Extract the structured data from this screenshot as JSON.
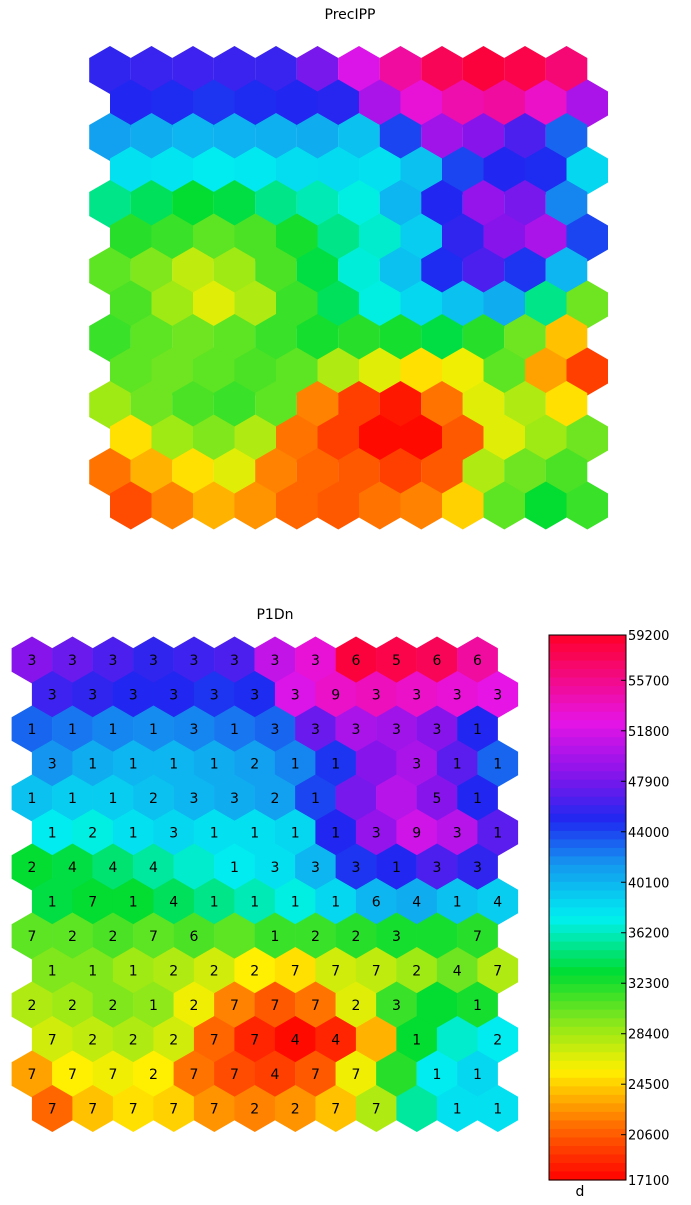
{
  "chart_data": [
    {
      "type": "heatmap",
      "layout": "hexagonal",
      "title": "PrecIPP",
      "rows": 14,
      "cols": 12,
      "values": [
        [
          45500,
          45800,
          46000,
          45900,
          45800,
          48000,
          52000,
          55000,
          57500,
          58500,
          58000,
          56500
        ],
        [
          45000,
          44800,
          44500,
          44800,
          45000,
          45200,
          50000,
          53000,
          54500,
          55000,
          53500,
          50000
        ],
        [
          41000,
          40500,
          40000,
          40200,
          40300,
          40500,
          39500,
          44000,
          49500,
          48500,
          46500,
          43000
        ],
        [
          38000,
          37800,
          37500,
          37700,
          38200,
          38300,
          38000,
          39500,
          44000,
          45000,
          44800,
          38500
        ],
        [
          35000,
          34000,
          33000,
          33500,
          35000,
          36000,
          37000,
          40000,
          45000,
          49000,
          48000,
          42000
        ],
        [
          32000,
          31500,
          30500,
          31000,
          32500,
          35000,
          36500,
          39000,
          45500,
          48500,
          50000,
          44000
        ],
        [
          30500,
          29500,
          27500,
          28500,
          31000,
          33500,
          36800,
          39500,
          44800,
          46500,
          44500,
          40000
        ],
        [
          31000,
          28500,
          26500,
          28000,
          31500,
          34000,
          37000,
          38500,
          39500,
          40500,
          35000,
          30000
        ],
        [
          31500,
          30500,
          30000,
          30500,
          31500,
          32500,
          32000,
          32500,
          33500,
          32000,
          30000,
          24000
        ],
        [
          30500,
          30000,
          30500,
          31000,
          30500,
          28000,
          26500,
          25000,
          26000,
          30500,
          23000,
          19500
        ],
        [
          28500,
          30000,
          31000,
          31500,
          30500,
          22000,
          19500,
          18000,
          21500,
          26500,
          28000,
          25000
        ],
        [
          25000,
          28500,
          29500,
          28000,
          21500,
          19500,
          17500,
          17500,
          20500,
          26500,
          28500,
          30000
        ],
        [
          21500,
          23500,
          25000,
          26500,
          22000,
          21000,
          20500,
          19500,
          20500,
          28000,
          30000,
          31000
        ],
        [
          20000,
          22000,
          23500,
          22500,
          21000,
          20500,
          21500,
          22000,
          24500,
          30500,
          33000,
          31500
        ]
      ]
    },
    {
      "type": "heatmap",
      "layout": "hexagonal",
      "title": "P1Dn",
      "rows": 14,
      "cols": 12,
      "values": [
        [
          48500,
          47500,
          46500,
          45500,
          46000,
          46500,
          51000,
          53000,
          58500,
          58000,
          57500,
          55000
        ],
        [
          46000,
          45500,
          45000,
          45000,
          44500,
          44800,
          52000,
          53500,
          54000,
          53500,
          53000,
          52500
        ],
        [
          43000,
          42500,
          42000,
          41800,
          42000,
          42500,
          43000,
          47500,
          50000,
          49500,
          48500,
          45000
        ],
        [
          41500,
          40500,
          40000,
          40000,
          40500,
          41000,
          42000,
          44500,
          48500,
          50000,
          47000,
          43000
        ],
        [
          39500,
          39000,
          39000,
          39500,
          40000,
          40500,
          41000,
          44000,
          48000,
          50500,
          48500,
          45000
        ],
        [
          37500,
          37000,
          38000,
          38500,
          38000,
          38000,
          38500,
          45000,
          49000,
          51500,
          50500,
          47000
        ],
        [
          33000,
          33500,
          34500,
          35500,
          36500,
          37500,
          38000,
          40000,
          44500,
          45000,
          46500,
          45500
        ],
        [
          33500,
          33000,
          33000,
          34000,
          35000,
          36000,
          37000,
          38500,
          40000,
          40500,
          39500,
          39000
        ],
        [
          30500,
          30500,
          31000,
          30500,
          31000,
          30500,
          31500,
          31500,
          32000,
          32500,
          32500,
          32000
        ],
        [
          29500,
          29500,
          28500,
          28000,
          27000,
          25500,
          25000,
          27000,
          27500,
          28500,
          30000,
          28000
        ],
        [
          28000,
          28500,
          29500,
          29000,
          26000,
          22000,
          20500,
          21500,
          26500,
          31500,
          33000,
          32500
        ],
        [
          27000,
          27500,
          28000,
          27000,
          21000,
          18500,
          17500,
          18500,
          23500,
          33000,
          36500,
          37500
        ],
        [
          23000,
          25500,
          26000,
          25500,
          21500,
          20000,
          19500,
          20500,
          26000,
          32000,
          37500,
          38500
        ],
        [
          21000,
          24000,
          25000,
          24500,
          22500,
          22000,
          22500,
          24000,
          28000,
          35500,
          38000,
          38000
        ]
      ],
      "labels": [
        [
          "3",
          "3",
          "3",
          "3",
          "3",
          "3",
          "3",
          "3",
          "6",
          "5",
          "6",
          "6"
        ],
        [
          "3",
          "3",
          "3",
          "3",
          "3",
          "3",
          "3",
          "9",
          "3",
          "3",
          "3",
          "3"
        ],
        [
          "1",
          "1",
          "1",
          "1",
          "3",
          "1",
          "3",
          "3",
          "3",
          "3",
          "3",
          "1"
        ],
        [
          "3",
          "1",
          "1",
          "1",
          "1",
          "2",
          "1",
          "1",
          "",
          "3",
          "1",
          "1"
        ],
        [
          "1",
          "1",
          "1",
          "2",
          "3",
          "3",
          "2",
          "1",
          "",
          "",
          "5",
          "1"
        ],
        [
          "1",
          "2",
          "1",
          "3",
          "1",
          "1",
          "1",
          "1",
          "3",
          "9",
          "3",
          "1"
        ],
        [
          "2",
          "4",
          "4",
          "4",
          "",
          "1",
          "3",
          "3",
          "3",
          "1",
          "3",
          "3"
        ],
        [
          "1",
          "7",
          "1",
          "4",
          "1",
          "1",
          "1",
          "1",
          "6",
          "4",
          "1",
          "4"
        ],
        [
          "7",
          "2",
          "2",
          "7",
          "6",
          "",
          "1",
          "2",
          "2",
          "3",
          "",
          "7"
        ],
        [
          "1",
          "1",
          "1",
          "2",
          "2",
          "2",
          "7",
          "7",
          "7",
          "2",
          "4",
          "7"
        ],
        [
          "2",
          "2",
          "2",
          "1",
          "2",
          "7",
          "7",
          "7",
          "2",
          "3",
          "",
          "1"
        ],
        [
          "7",
          "2",
          "2",
          "2",
          "7",
          "7",
          "4",
          "4",
          "",
          "1",
          "",
          "2"
        ],
        [
          "7",
          "7",
          "7",
          "2",
          "7",
          "7",
          "4",
          "7",
          "7",
          "",
          "1",
          "1"
        ],
        [
          "7",
          "7",
          "7",
          "7",
          "7",
          "2",
          "2",
          "7",
          "7",
          "",
          "1",
          "1"
        ]
      ],
      "colorbar": {
        "min": 17100,
        "max": 59200,
        "ticks": [
          "59200",
          "55700",
          "51800",
          "47900",
          "44000",
          "40100",
          "36200",
          "32300",
          "28400",
          "24500",
          "20600",
          "17100"
        ],
        "label": "d"
      }
    }
  ]
}
